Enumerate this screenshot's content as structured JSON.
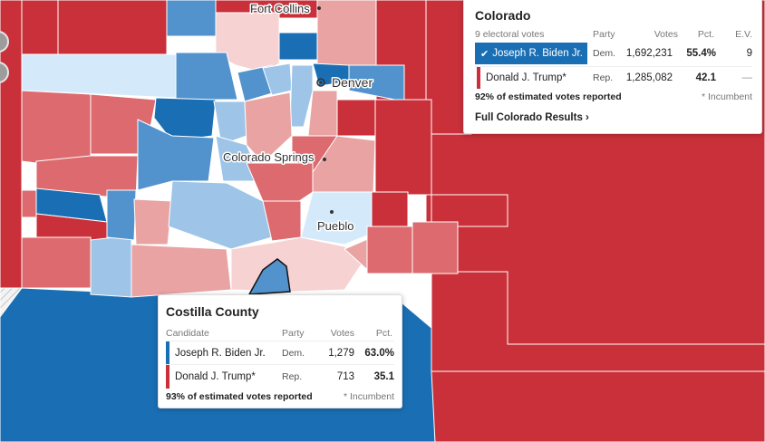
{
  "colors": {
    "dem_dark": "#1a6fb4",
    "dem_med": "#5293cd",
    "dem_light": "#9ec5e8",
    "dem_pale": "#d4eafb",
    "rep_dark": "#c9303a",
    "rep_med": "#dc6a6e",
    "rep_light": "#e9a3a3",
    "rep_pale": "#f6d2d2"
  },
  "map": {
    "cities": [
      {
        "name": "Fort Collins"
      },
      {
        "name": "Denver"
      },
      {
        "name": "Colorado Springs"
      },
      {
        "name": "Pueblo"
      }
    ]
  },
  "state_panel": {
    "title": "Colorado",
    "subtitle": "9 electoral votes",
    "col_party": "Party",
    "col_votes": "Votes",
    "col_pct": "Pct.",
    "col_ev": "E.V.",
    "rows": [
      {
        "candidate": "Joseph R. Biden Jr.",
        "party": "Dem.",
        "votes": "1,692,231",
        "pct": "55.4%",
        "ev": "9",
        "winner": true
      },
      {
        "candidate": "Donald J. Trump*",
        "party": "Rep.",
        "votes": "1,285,082",
        "pct": "42.1",
        "ev": "—",
        "winner": false
      }
    ],
    "reporting": "92% of estimated votes reported",
    "incumbent_note": "* Incumbent",
    "link": "Full Colorado Results ›"
  },
  "county_panel": {
    "title": "Costilla County",
    "col_candidate": "Candidate",
    "col_party": "Party",
    "col_votes": "Votes",
    "col_pct": "Pct.",
    "rows": [
      {
        "candidate": "Joseph R. Biden Jr.",
        "party": "Dem.",
        "votes": "1,279",
        "pct": "63.0%"
      },
      {
        "candidate": "Donald J. Trump*",
        "party": "Rep.",
        "votes": "713",
        "pct": "35.1"
      }
    ],
    "reporting": "93% of estimated votes reported",
    "incumbent_note": "* Incumbent"
  }
}
